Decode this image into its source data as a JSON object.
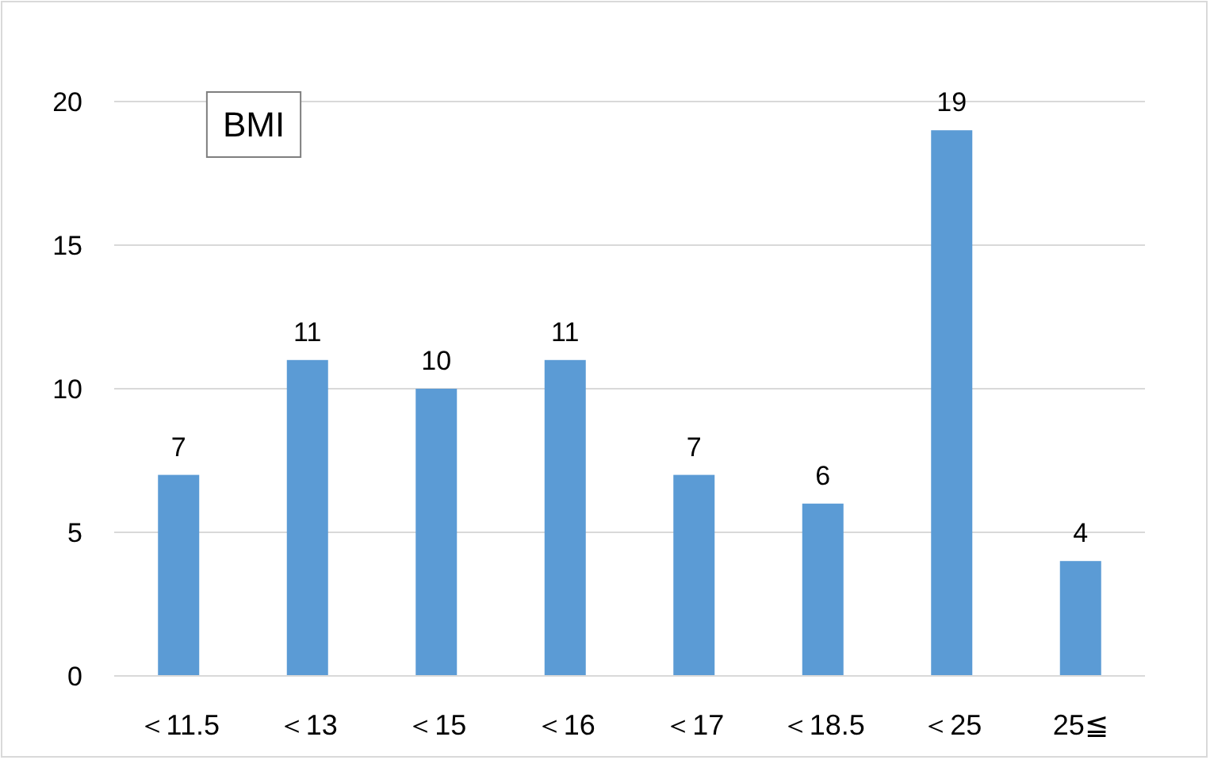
{
  "chart_data": {
    "type": "bar",
    "title": "BMI",
    "categories": [
      "＜11.5",
      "＜13",
      "＜15",
      "＜16",
      "＜17",
      "＜18.5",
      "＜25",
      "25≦"
    ],
    "values": [
      7,
      11,
      10,
      11,
      7,
      6,
      19,
      4
    ],
    "color": "#5b9bd5",
    "ylim": [
      0,
      20
    ],
    "yticks": [
      0,
      5,
      10,
      15,
      20
    ],
    "grid": "y",
    "data_labels": true
  }
}
